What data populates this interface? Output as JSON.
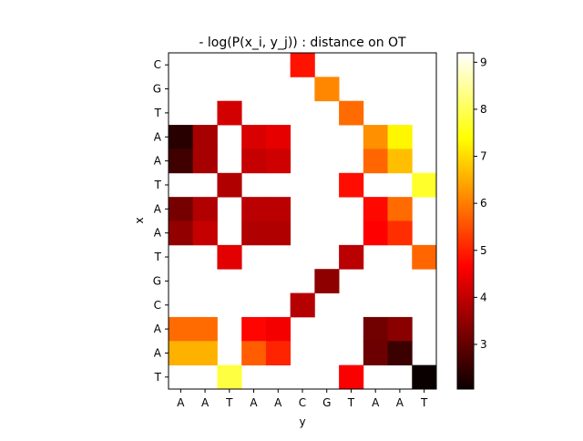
{
  "chart_data": [
    {
      "type": "heatmap",
      "title": "- log(P(x_i, y_j)) : distance on OT",
      "xlabel": "y",
      "ylabel": "x",
      "x_categories": [
        "A",
        "A",
        "T",
        "A",
        "A",
        "C",
        "G",
        "T",
        "A",
        "A",
        "T"
      ],
      "y_categories": [
        "C",
        "G",
        "T",
        "A",
        "A",
        "T",
        "A",
        "A",
        "T",
        "G",
        "C",
        "A",
        "A",
        "T"
      ],
      "colormap": "hot",
      "missing_color": "#ffffff",
      "grid": false,
      "vmin": 2.05,
      "vmax": 9.2,
      "colorbar": {
        "ticks": [
          3,
          4,
          5,
          6,
          7,
          8,
          9
        ],
        "tick_labels": [
          "3",
          "4",
          "5",
          "6",
          "7",
          "8",
          "9"
        ]
      },
      "values": [
        [
          null,
          null,
          null,
          null,
          null,
          4.85,
          null,
          null,
          null,
          null,
          null
        ],
        [
          null,
          null,
          null,
          null,
          null,
          null,
          6.1,
          null,
          null,
          null,
          null
        ],
        [
          null,
          null,
          4.1,
          null,
          null,
          null,
          null,
          5.8,
          null,
          null,
          null
        ],
        [
          2.35,
          3.65,
          null,
          4.15,
          4.3,
          null,
          null,
          null,
          6.2,
          7.3,
          null
        ],
        [
          2.6,
          3.65,
          null,
          3.95,
          4.05,
          null,
          null,
          null,
          5.75,
          6.7,
          null
        ],
        [
          null,
          null,
          3.75,
          null,
          null,
          null,
          null,
          4.8,
          null,
          null,
          7.7
        ],
        [
          3.15,
          3.75,
          null,
          3.85,
          3.85,
          null,
          null,
          null,
          4.75,
          5.8,
          null
        ],
        [
          3.45,
          3.95,
          null,
          3.75,
          3.75,
          null,
          null,
          null,
          4.55,
          5.15,
          null
        ],
        [
          null,
          null,
          4.25,
          null,
          null,
          null,
          null,
          3.85,
          null,
          null,
          5.75
        ],
        [
          null,
          null,
          null,
          null,
          null,
          null,
          3.4,
          null,
          null,
          null,
          null
        ],
        [
          null,
          null,
          null,
          null,
          null,
          3.8,
          null,
          null,
          null,
          null,
          null
        ],
        [
          5.8,
          5.8,
          null,
          4.7,
          4.45,
          null,
          null,
          null,
          3.1,
          3.35,
          null
        ],
        [
          6.55,
          6.55,
          null,
          5.65,
          5.05,
          null,
          null,
          null,
          3.05,
          2.55,
          null
        ],
        [
          null,
          null,
          7.85,
          null,
          null,
          null,
          null,
          4.5,
          null,
          null,
          2.05
        ]
      ]
    }
  ]
}
